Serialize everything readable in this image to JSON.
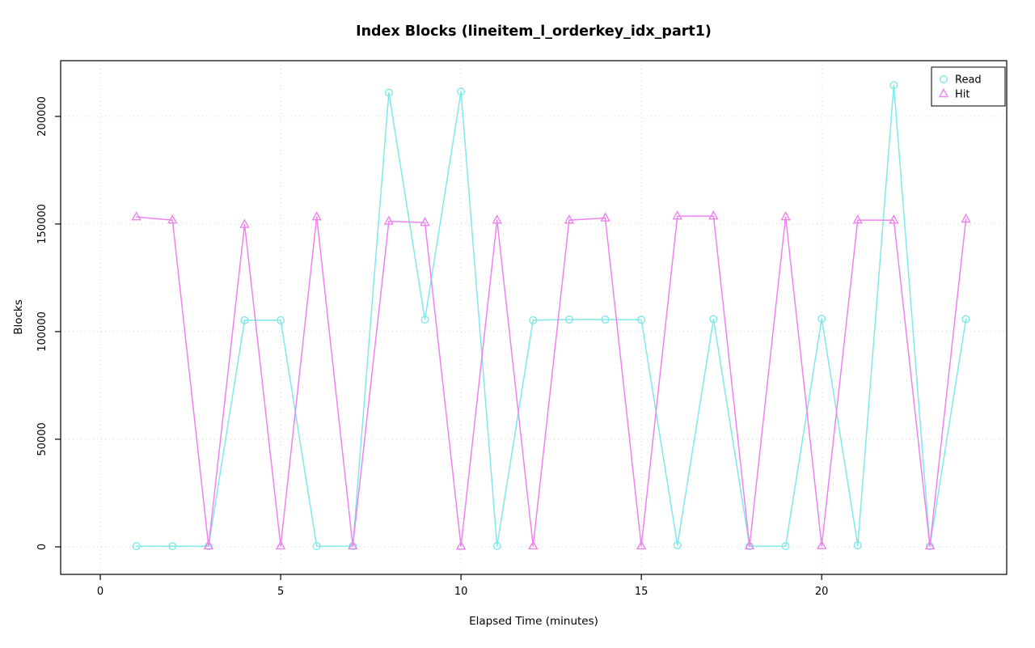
{
  "chart_data": {
    "type": "line",
    "title": "Index Blocks (lineitem_l_orderkey_idx_part1)",
    "xlabel": "Elapsed Time (minutes)",
    "ylabel": "Blocks",
    "x": [
      1,
      2,
      3,
      4,
      5,
      6,
      7,
      8,
      9,
      10,
      11,
      12,
      13,
      14,
      15,
      16,
      17,
      18,
      19,
      20,
      21,
      22,
      23,
      24
    ],
    "series": [
      {
        "name": "Read",
        "marker": "circle",
        "color": "#7FE9E9",
        "values": [
          300,
          300,
          300,
          105300,
          105300,
          300,
          300,
          211000,
          105600,
          211500,
          400,
          105300,
          105600,
          105600,
          105500,
          700,
          105800,
          300,
          300,
          106000,
          700,
          214500,
          300,
          105800
        ]
      },
      {
        "name": "Hit",
        "marker": "triangle",
        "color": "#EE82EE",
        "values": [
          153300,
          151800,
          400,
          149800,
          400,
          153300,
          400,
          151300,
          150700,
          300,
          151800,
          400,
          151800,
          152800,
          400,
          153700,
          153700,
          400,
          153300,
          500,
          151800,
          151800,
          400,
          152300
        ]
      }
    ],
    "xticks": [
      0,
      5,
      10,
      15,
      20
    ],
    "yticks": [
      0,
      50000,
      100000,
      150000,
      200000
    ],
    "xlim": [
      -1.1,
      25.13
    ],
    "ylim": [
      -12800,
      225900
    ],
    "grid": true,
    "grid_color": "#d4d4d4",
    "axis_color": "#000000",
    "legend": {
      "position": "top-right"
    }
  }
}
